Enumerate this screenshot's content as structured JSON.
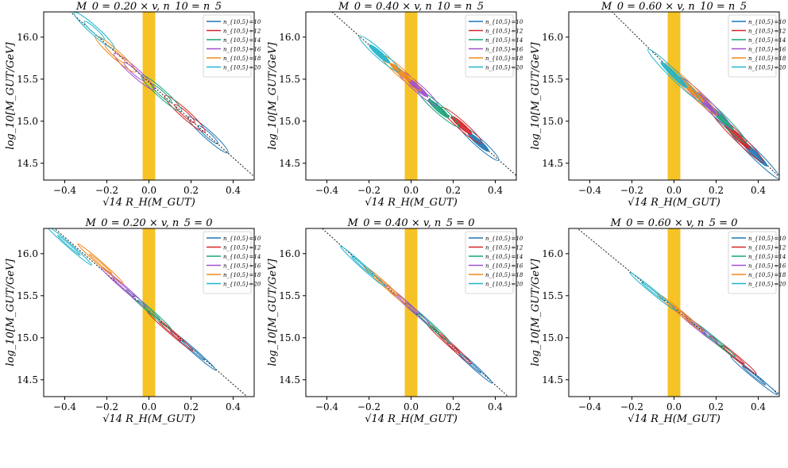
{
  "chart_data": [
    {
      "type": "scatter",
      "title": "M_0 = 0.20 × v,  n_10 = n_5",
      "m0": 0.2,
      "cond": "n10=n5",
      "xlabel": "√14 R_H(M_GUT)",
      "ylabel": "log_10[M_GUT/GeV]",
      "xlim": [
        -0.5,
        0.5
      ],
      "ylim": [
        14.3,
        16.3
      ],
      "xticks": [
        "−0.4",
        "−0.2",
        "0.0",
        "0.2",
        "0.4"
      ],
      "yticks": [
        "14.5",
        "15.0",
        "15.5",
        "16.0"
      ],
      "legend_position": "top-right",
      "series": [
        {
          "name": "n_{10,5}=10",
          "center": [
            0.28,
            14.84
          ]
        },
        {
          "name": "n_{10,5}=12",
          "center": [
            0.17,
            15.09
          ]
        },
        {
          "name": "n_{10,5}=14",
          "center": [
            0.06,
            15.33
          ]
        },
        {
          "name": "n_{10,5}=16",
          "center": [
            -0.07,
            15.59
          ]
        },
        {
          "name": "n_{10,5}=18",
          "center": [
            -0.16,
            15.8
          ]
        },
        {
          "name": "n_{10,5}=20",
          "center": [
            -0.26,
            16.08
          ]
        }
      ]
    },
    {
      "type": "scatter",
      "title": "M_0 = 0.40 × v,  n_10 = n_5",
      "m0": 0.4,
      "cond": "n10=n5",
      "xlabel": "√14 R_H(M_GUT)",
      "ylabel": "log_10[M_GUT/GeV]",
      "xlim": [
        -0.5,
        0.5
      ],
      "ylim": [
        14.3,
        16.3
      ],
      "xticks": [
        "−0.4",
        "−0.2",
        "0.0",
        "0.2",
        "0.4"
      ],
      "yticks": [
        "14.5",
        "15.0",
        "15.5",
        "16.0"
      ],
      "legend_position": "top-right",
      "series": [
        {
          "name": "n_{10,5}=10",
          "center": [
            0.32,
            14.75
          ]
        },
        {
          "name": "n_{10,5}=12",
          "center": [
            0.24,
            14.95
          ]
        },
        {
          "name": "n_{10,5}=14",
          "center": [
            0.13,
            15.15
          ]
        },
        {
          "name": "n_{10,5}=16",
          "center": [
            0.03,
            15.4
          ]
        },
        {
          "name": "n_{10,5}=18",
          "center": [
            -0.05,
            15.58
          ]
        },
        {
          "name": "n_{10,5}=20",
          "center": [
            -0.15,
            15.8
          ]
        }
      ]
    },
    {
      "type": "scatter",
      "title": "M_0 = 0.60 × v,  n_10 = n_5",
      "m0": 0.6,
      "cond": "n10=n5",
      "xlabel": "√14 R_H(M_GUT)",
      "ylabel": "log_10[M_GUT/GeV]",
      "xlim": [
        -0.5,
        0.5
      ],
      "ylim": [
        14.3,
        16.3
      ],
      "xticks": [
        "−0.4",
        "−0.2",
        "0.0",
        "0.2",
        "0.4"
      ],
      "yticks": [
        "14.5",
        "15.0",
        "15.5",
        "16.0"
      ],
      "legend_position": "top-right",
      "series": [
        {
          "name": "n_{10,5}=10",
          "center": [
            0.38,
            14.62
          ]
        },
        {
          "name": "n_{10,5}=12",
          "center": [
            0.3,
            14.82
          ]
        },
        {
          "name": "n_{10,5}=14",
          "center": [
            0.22,
            15.05
          ]
        },
        {
          "name": "n_{10,5}=16",
          "center": [
            0.15,
            15.22
          ]
        },
        {
          "name": "n_{10,5}=18",
          "center": [
            0.08,
            15.38
          ]
        },
        {
          "name": "n_{10,5}=20",
          "center": [
            0.0,
            15.55
          ]
        }
      ]
    },
    {
      "type": "scatter",
      "title": "M_0 = 0.20 × v,  n_5 = 0",
      "m0": 0.2,
      "cond": "n5=0",
      "xlabel": "√14 R_H(M_GUT)",
      "ylabel": "log_10[M_GUT/GeV]",
      "xlim": [
        -0.5,
        0.5
      ],
      "ylim": [
        14.3,
        16.3
      ],
      "xticks": [
        "−0.4",
        "−0.2",
        "0.0",
        "0.2",
        "0.4"
      ],
      "yticks": [
        "14.5",
        "15.0",
        "15.5",
        "16.0"
      ],
      "legend_position": "top-right",
      "series": [
        {
          "name": "n_{10,5}=10",
          "center": [
            0.21,
            14.85
          ]
        },
        {
          "name": "n_{10,5}=12",
          "center": [
            0.1,
            15.08
          ]
        },
        {
          "name": "n_{10,5}=14",
          "center": [
            0.0,
            15.33
          ]
        },
        {
          "name": "n_{10,5}=16",
          "center": [
            -0.12,
            15.6
          ]
        },
        {
          "name": "n_{10,5}=18",
          "center": [
            -0.23,
            15.88
          ]
        },
        {
          "name": "n_{10,5}=20",
          "center": [
            -0.38,
            16.1
          ]
        }
      ]
    },
    {
      "type": "scatter",
      "title": "M_0 = 0.40 × v,  n_5 = 0",
      "m0": 0.4,
      "cond": "n5=0",
      "xlabel": "√14 R_H(M_GUT)",
      "ylabel": "log_10[M_GUT/GeV]",
      "xlim": [
        -0.5,
        0.5
      ],
      "ylim": [
        14.3,
        16.3
      ],
      "xticks": [
        "−0.4",
        "−0.2",
        "0.0",
        "0.2",
        "0.4"
      ],
      "yticks": [
        "14.5",
        "15.0",
        "15.5",
        "16.0"
      ],
      "legend_position": "top-right",
      "series": [
        {
          "name": "n_{10,5}=10",
          "center": [
            0.28,
            14.7
          ]
        },
        {
          "name": "n_{10,5}=12",
          "center": [
            0.18,
            14.93
          ]
        },
        {
          "name": "n_{10,5}=14",
          "center": [
            0.08,
            15.18
          ]
        },
        {
          "name": "n_{10,5}=16",
          "center": [
            -0.02,
            15.4
          ]
        },
        {
          "name": "n_{10,5}=18",
          "center": [
            -0.12,
            15.62
          ]
        },
        {
          "name": "n_{10,5}=20",
          "center": [
            -0.23,
            15.85
          ]
        }
      ]
    },
    {
      "type": "scatter",
      "title": "M_0 = 0.60 × v,  n_5 = 0",
      "m0": 0.6,
      "cond": "n5=0",
      "xlabel": "√14 R_H(M_GUT)",
      "ylabel": "log_10[M_GUT/GeV]",
      "xlim": [
        -0.5,
        0.5
      ],
      "ylim": [
        14.3,
        16.3
      ],
      "xticks": [
        "−0.4",
        "−0.2",
        "0.0",
        "0.2",
        "0.4"
      ],
      "yticks": [
        "14.5",
        "15.0",
        "15.5",
        "16.0"
      ],
      "legend_position": "top-right",
      "series": [
        {
          "name": "n_{10,5}=10",
          "center": [
            0.38,
            14.55
          ]
        },
        {
          "name": "n_{10,5}=12",
          "center": [
            0.28,
            14.8
          ]
        },
        {
          "name": "n_{10,5}=14",
          "center": [
            0.18,
            15.0
          ]
        },
        {
          "name": "n_{10,5}=16",
          "center": [
            0.1,
            15.15
          ]
        },
        {
          "name": "n_{10,5}=18",
          "center": [
            0.03,
            15.3
          ]
        },
        {
          "name": "n_{10,5}=20",
          "center": [
            -0.1,
            15.55
          ]
        }
      ]
    }
  ],
  "colors": {
    "n10": "#1f77b4",
    "n12": "#d62728",
    "n14": "#17a57a",
    "n16": "#a050d0",
    "n18": "#f08a1c",
    "n20": "#20b5cc",
    "band": "#f5b800"
  }
}
